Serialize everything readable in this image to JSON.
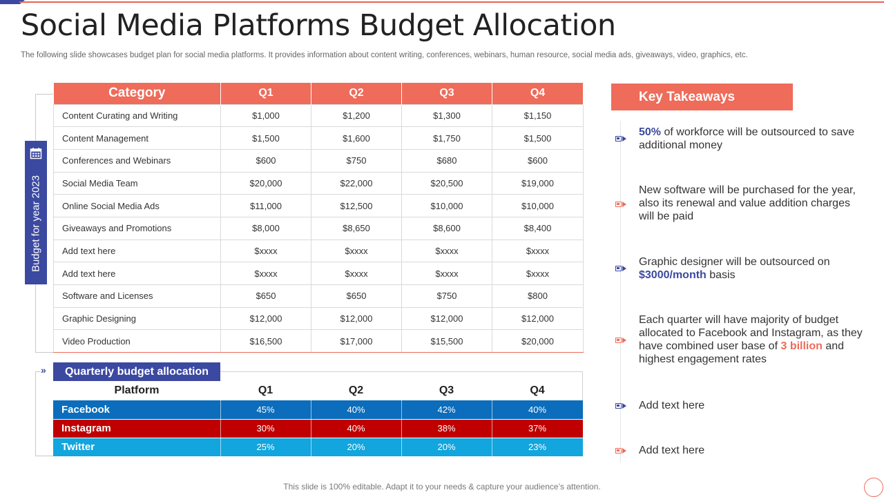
{
  "title": "Social Media Platforms Budget Allocation",
  "subtitle": "The following slide showcases budget plan for social media platforms. It provides information about content writing, conferences, webinars, human resource, social media ads, giveaways, video, graphics, etc.",
  "side_label": "Budget for year 2023",
  "budget_table": {
    "headers": [
      "Category",
      "Q1",
      "Q2",
      "Q3",
      "Q4"
    ],
    "rows": [
      [
        "Content Curating  and Writing",
        "$1,000",
        "$1,200",
        "$1,300",
        "$1,150"
      ],
      [
        "Content Management",
        "$1,500",
        "$1,600",
        "$1,750",
        "$1,500"
      ],
      [
        "Conferences  and Webinars",
        "$600",
        "$750",
        "$680",
        "$600"
      ],
      [
        "Social Media Team",
        "$20,000",
        "$22,000",
        "$20,500",
        "$19,000"
      ],
      [
        "Online Social Media Ads",
        "$11,000",
        "$12,500",
        "$10,000",
        "$10,000"
      ],
      [
        "Giveaways  and Promotions",
        "$8,000",
        "$8,650",
        "$8,600",
        "$8,400"
      ],
      [
        "Add text here",
        "$xxxx",
        "$xxxx",
        "$xxxx",
        "$xxxx"
      ],
      [
        "Add text here",
        "$xxxx",
        "$xxxx",
        "$xxxx",
        "$xxxx"
      ],
      [
        "Software  and Licenses",
        "$650",
        "$650",
        "$750",
        "$800"
      ],
      [
        "Graphic Designing",
        "$12,000",
        "$12,000",
        "$12,000",
        "$12,000"
      ],
      [
        "Video Production",
        "$16,500",
        "$17,000",
        "$15,500",
        "$20,000"
      ]
    ]
  },
  "quarterly": {
    "label": "Quarterly budget allocation",
    "headers": [
      "Platform",
      "Q1",
      "Q2",
      "Q3",
      "Q4"
    ],
    "rows": [
      {
        "name": "Facebook",
        "values": [
          "45%",
          "40%",
          "42%",
          "40%"
        ],
        "color": "#0b6dbb"
      },
      {
        "name": "Instagram",
        "values": [
          "30%",
          "40%",
          "38%",
          "37%"
        ],
        "color": "#c00000"
      },
      {
        "name": "Twitter",
        "values": [
          "25%",
          "20%",
          "20%",
          "23%"
        ],
        "color": "#12a5de"
      }
    ]
  },
  "key_takeaways": {
    "title": "Key Takeaways",
    "items": [
      {
        "parts": [
          {
            "text": "50%",
            "style": "blue"
          },
          {
            "text": " of workforce will be outsourced to save additional money"
          }
        ],
        "icon_color": "blue"
      },
      {
        "parts": [
          {
            "text": "New software will be purchased for the year, also its renewal and value addition charges will be paid"
          }
        ],
        "icon_color": "red"
      },
      {
        "parts": [
          {
            "text": "Graphic designer will be outsourced on "
          },
          {
            "text": "$3000/month",
            "style": "blue"
          },
          {
            "text": " basis"
          }
        ],
        "icon_color": "blue"
      },
      {
        "parts": [
          {
            "text": "Each quarter will have majority of budget allocated to Facebook and Instagram, as they have combined user base of "
          },
          {
            "text": "3 billion",
            "style": "red"
          },
          {
            "text": " and highest engagement rates"
          }
        ],
        "icon_color": "red"
      },
      {
        "parts": [
          {
            "text": "Add text here"
          }
        ],
        "icon_color": "blue"
      },
      {
        "parts": [
          {
            "text": "Add text here"
          }
        ],
        "icon_color": "red"
      }
    ]
  },
  "footer": "This slide is 100% editable. Adapt it to your needs & capture your audience’s attention."
}
